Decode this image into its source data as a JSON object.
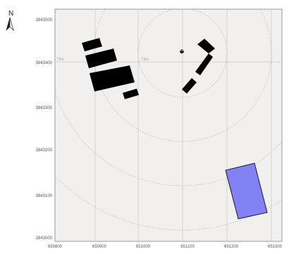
{
  "map": {
    "north_label": "N",
    "colors": {
      "background": "#f1f0ee",
      "frame": "#9a9a9a",
      "grid": "#c8c8c8",
      "buildings": "#000000",
      "parcel_fill": "#8282f5",
      "parcel_stroke": "#1b1b2e"
    },
    "x_ticks": [
      "650800",
      "650900",
      "651000",
      "651100",
      "651200",
      "651300"
    ],
    "y_ticks": [
      "3843500",
      "3843400",
      "3843300",
      "3843200",
      "3843100",
      "3843000"
    ],
    "grid_labels": [
      "Title",
      "Title"
    ],
    "marker_icon": "pin-icon",
    "north_icon": "north-arrow-icon"
  }
}
